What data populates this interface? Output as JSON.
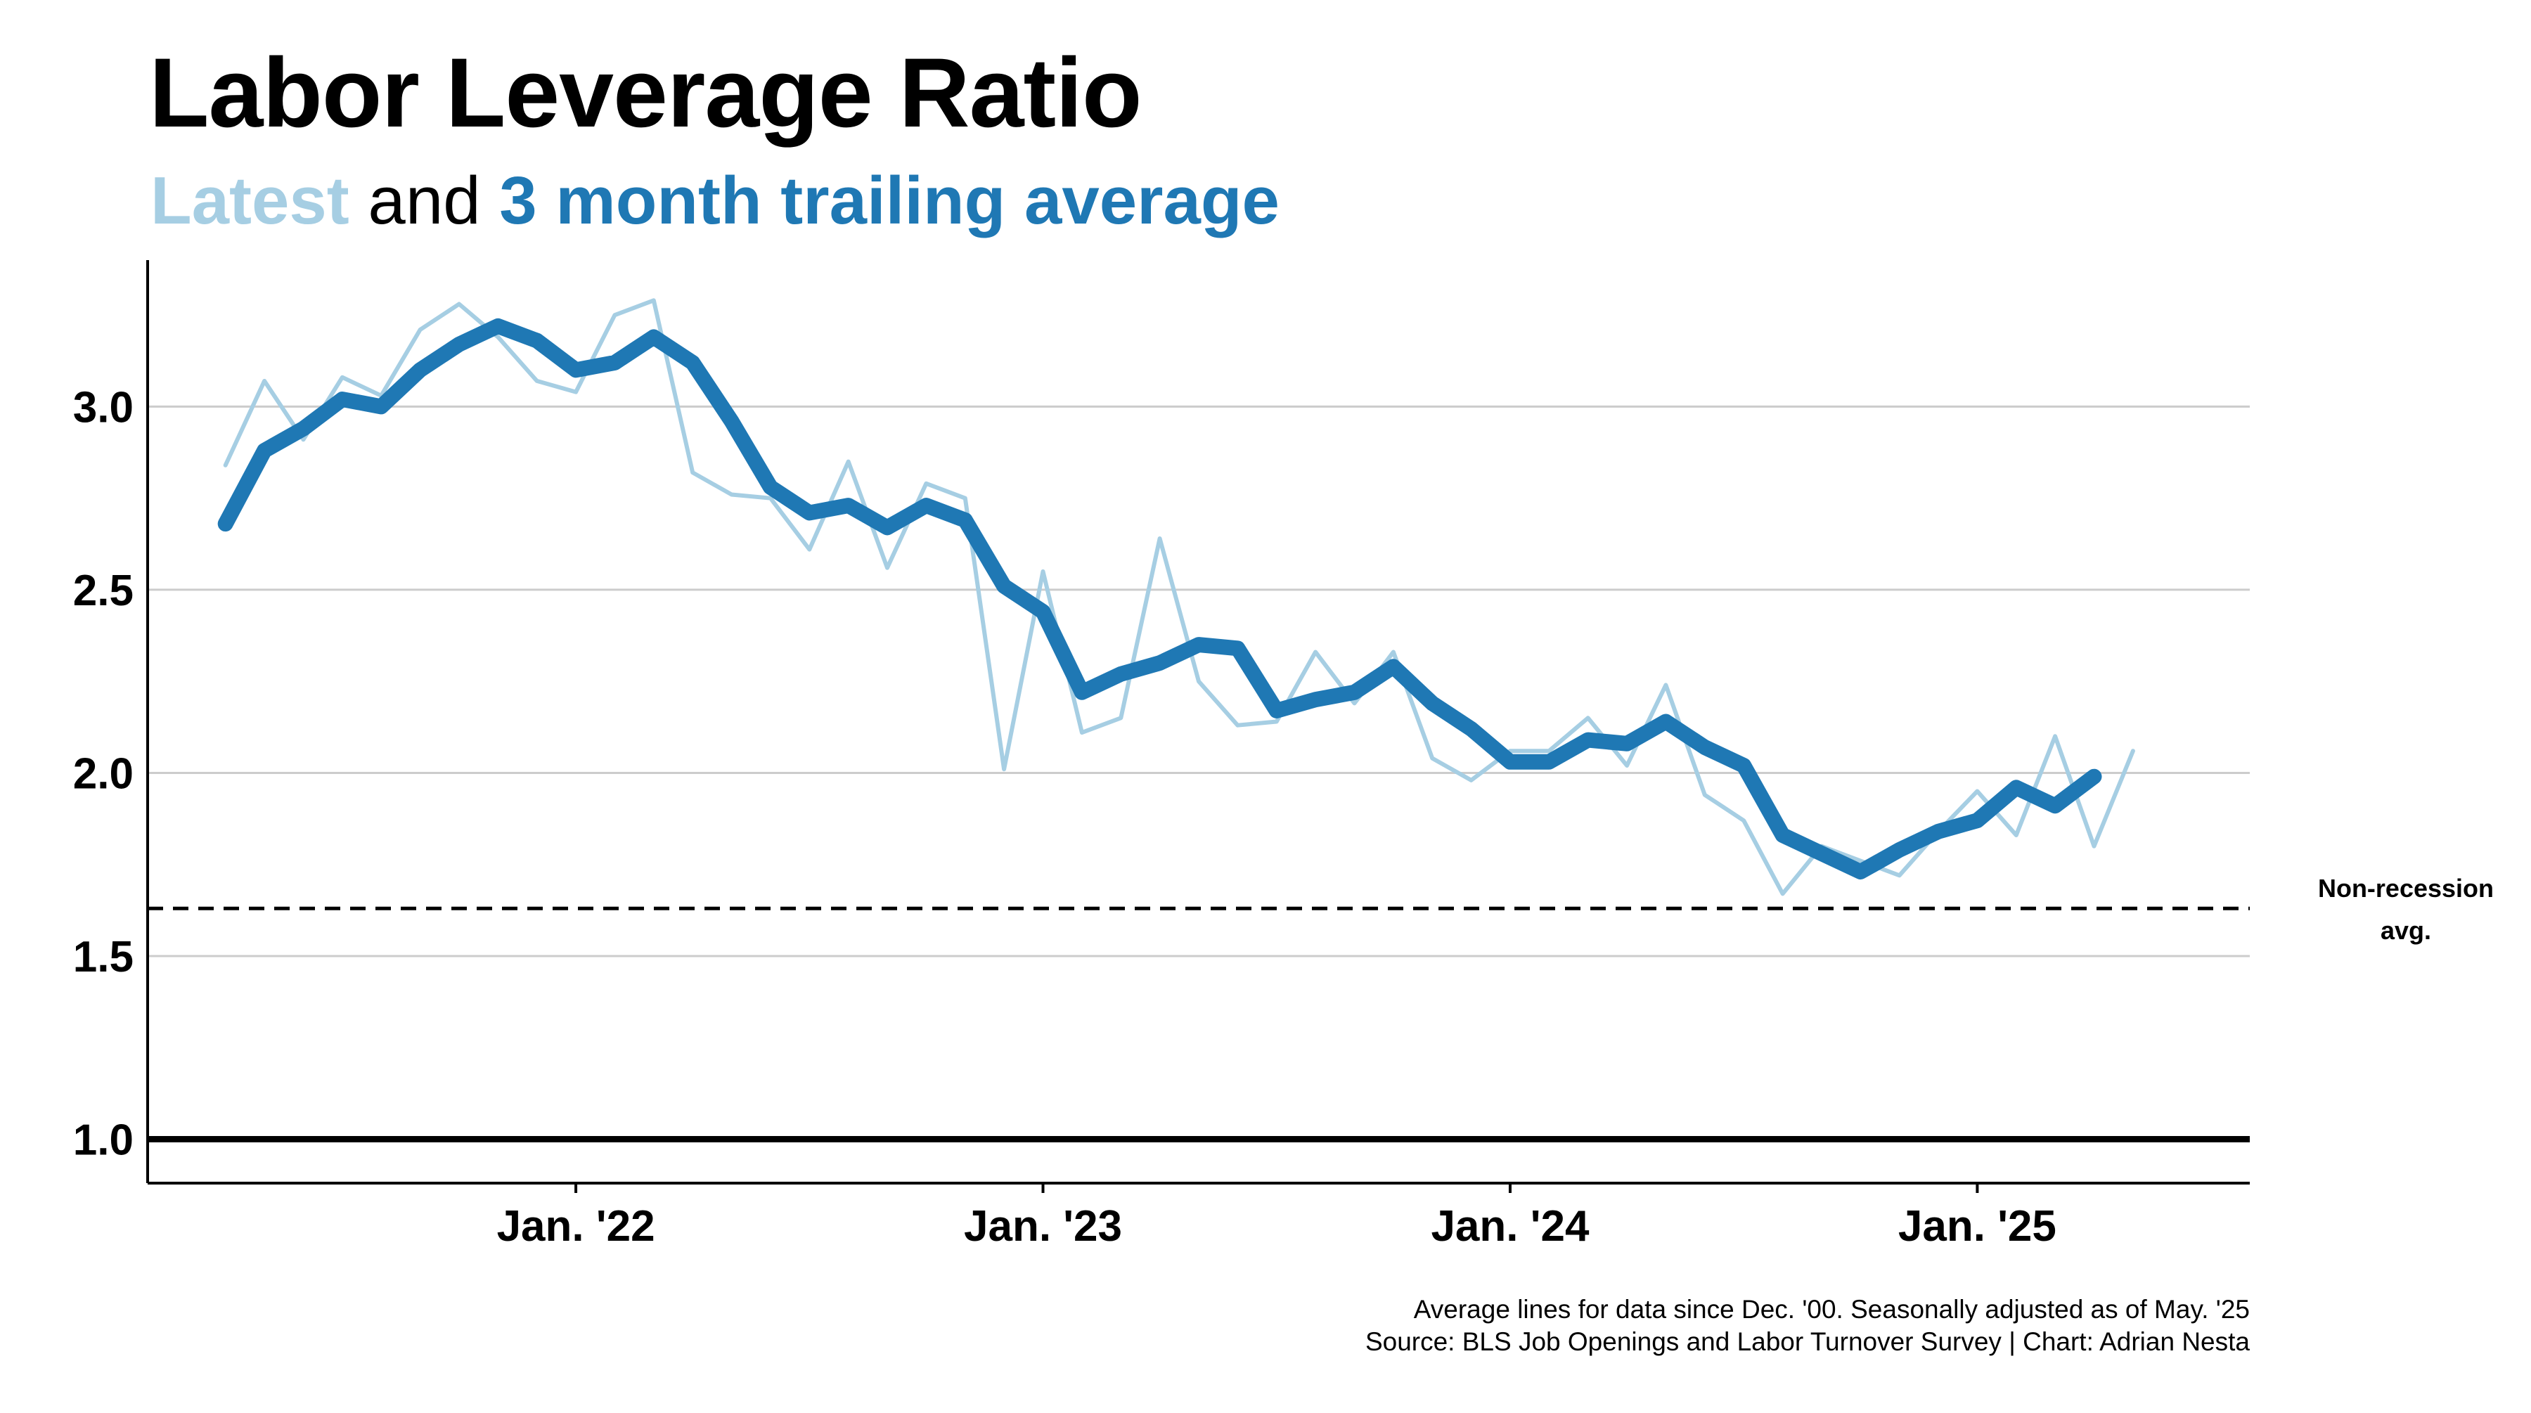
{
  "chart_data": {
    "type": "line",
    "title": "Labor Leverage Ratio",
    "subtitle": {
      "latest": "Latest",
      "and": "and",
      "avg": "3 month trailing average"
    },
    "xlabel": "",
    "ylabel": "",
    "ylim": [
      0.88,
      3.4
    ],
    "xlim": [
      "2021-02",
      "2025-08"
    ],
    "yticks": [
      "1.0",
      "1.5",
      "2.0",
      "2.5",
      "3.0"
    ],
    "ytick_values": [
      1.0,
      1.5,
      2.0,
      2.5,
      3.0
    ],
    "xticks": [
      "Jan. '22",
      "Jan. '23",
      "Jan. '24",
      "Jan. '25"
    ],
    "xtick_dates": [
      "2022-01",
      "2023-01",
      "2024-01",
      "2025-01"
    ],
    "grid": true,
    "colors": {
      "latest": "#a6cee3",
      "avg": "#1f78b4",
      "reference": "#000000",
      "grid": "#cccccc"
    },
    "x": [
      "2021-04",
      "2021-05",
      "2021-06",
      "2021-07",
      "2021-08",
      "2021-09",
      "2021-10",
      "2021-11",
      "2021-12",
      "2022-01",
      "2022-02",
      "2022-03",
      "2022-04",
      "2022-05",
      "2022-06",
      "2022-07",
      "2022-08",
      "2022-09",
      "2022-10",
      "2022-11",
      "2022-12",
      "2023-01",
      "2023-02",
      "2023-03",
      "2023-04",
      "2023-05",
      "2023-06",
      "2023-07",
      "2023-08",
      "2023-09",
      "2023-10",
      "2023-11",
      "2023-12",
      "2024-01",
      "2024-02",
      "2024-03",
      "2024-04",
      "2024-05",
      "2024-06",
      "2024-07",
      "2024-08",
      "2024-09",
      "2024-10",
      "2024-11",
      "2024-12",
      "2025-01",
      "2025-02",
      "2025-03",
      "2025-04",
      "2025-05"
    ],
    "series": [
      {
        "name": "Latest",
        "values": [
          2.84,
          3.07,
          2.91,
          3.08,
          3.03,
          3.21,
          3.28,
          3.19,
          3.07,
          3.04,
          3.25,
          3.29,
          2.82,
          2.76,
          2.75,
          2.61,
          2.85,
          2.56,
          2.79,
          2.75,
          2.01,
          2.55,
          2.11,
          2.15,
          2.64,
          2.25,
          2.13,
          2.14,
          2.33,
          2.19,
          2.33,
          2.04,
          1.98,
          2.06,
          2.06,
          2.15,
          2.02,
          2.24,
          1.94,
          1.87,
          1.67,
          1.8,
          1.76,
          1.72,
          1.84,
          1.95,
          1.83,
          2.1,
          1.8,
          2.06
        ]
      },
      {
        "name": "3 month trailing average",
        "values": [
          2.68,
          2.88,
          2.94,
          3.02,
          3.0,
          3.1,
          3.17,
          3.22,
          3.18,
          3.1,
          3.12,
          3.19,
          3.12,
          2.96,
          2.78,
          2.71,
          2.73,
          2.67,
          2.73,
          2.69,
          2.51,
          2.44,
          2.22,
          2.27,
          2.3,
          2.35,
          2.34,
          2.17,
          2.2,
          2.22,
          2.29,
          2.19,
          2.12,
          2.03,
          2.03,
          2.09,
          2.08,
          2.14,
          2.07,
          2.02,
          1.83,
          1.78,
          1.73,
          1.79,
          1.84,
          1.87,
          1.96,
          1.91,
          1.99,
          null
        ]
      }
    ],
    "reference_lines": [
      {
        "label_line1": "Non-recession",
        "label_line2": "avg.",
        "y": 1.63,
        "style": "dashed"
      }
    ],
    "baseline": 1.0,
    "caption": {
      "line1": "Average lines for data since Dec. '00. Seasonally adjusted as of May. '25",
      "line2": "Source: BLS Job Openings and Labor Turnover Survey | Chart: Adrian Nesta"
    }
  }
}
